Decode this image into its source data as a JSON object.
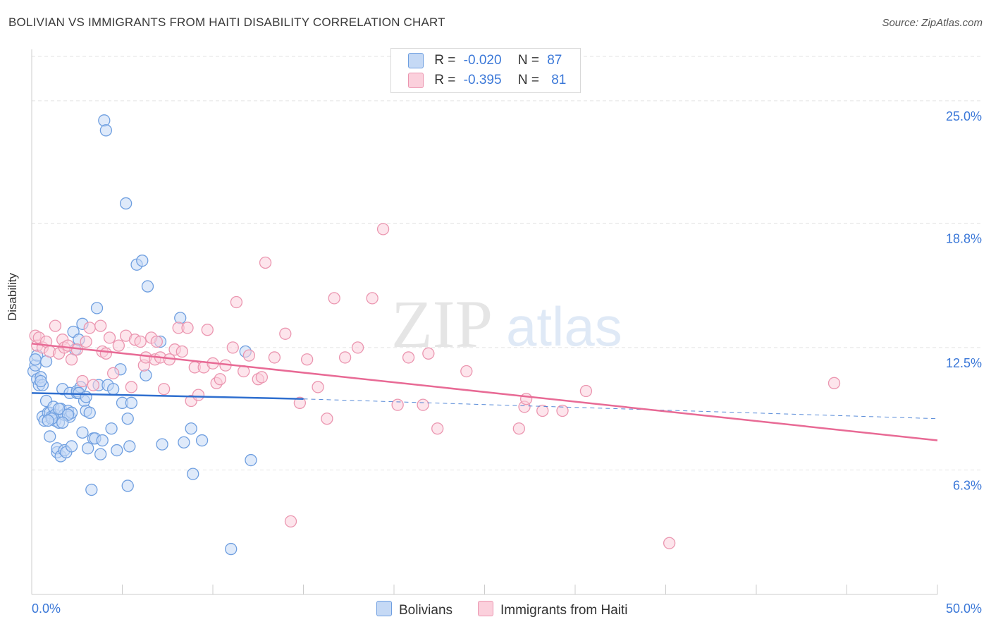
{
  "title": "BOLIVIAN VS IMMIGRANTS FROM HAITI DISABILITY CORRELATION CHART",
  "source": "Source: ZipAtlas.com",
  "watermark": {
    "zip": "ZIP",
    "atlas": "atlas"
  },
  "legend": {
    "rows": [
      {
        "r_label": "R =",
        "r_value": "-0.020",
        "n_label": "N =",
        "n_value": "87"
      },
      {
        "r_label": "R =",
        "r_value": "-0.395",
        "n_label": "N =",
        "n_value": "81"
      }
    ]
  },
  "colors": {
    "blue_fill": "#c5d9f5",
    "blue_stroke": "#6f9fe0",
    "blue_line": "#2f6fcf",
    "pink_fill": "#fbd0dc",
    "pink_stroke": "#eb96b0",
    "pink_line": "#e86a95",
    "tick_label": "#3b78d8",
    "grid": "#e3e3e3"
  },
  "chart_data": {
    "type": "scatter",
    "title": "BOLIVIAN VS IMMIGRANTS FROM HAITI DISABILITY CORRELATION CHART",
    "xlabel": "",
    "ylabel": "Disability",
    "xlim": [
      0,
      50
    ],
    "ylim": [
      0,
      27.6
    ],
    "x_tick_labels": [
      "0.0%",
      "50.0%"
    ],
    "y_ticks": [
      6.3,
      12.5,
      18.8,
      25.0
    ],
    "y_tick_labels": [
      "6.3%",
      "12.5%",
      "18.8%",
      "25.0%"
    ],
    "grid": "horizontal dashed",
    "legend_position": "top-center",
    "series": [
      {
        "name": "Bolivians",
        "color": "#6f9fe0",
        "trend": {
          "x": [
            0,
            15
          ],
          "y": [
            10.2,
            9.9
          ],
          "dashed_to": [
            50,
            8.9
          ]
        },
        "points": [
          [
            0.1,
            11.3
          ],
          [
            0.2,
            11.6
          ],
          [
            0.3,
            12.1
          ],
          [
            0.3,
            10.9
          ],
          [
            0.4,
            10.6
          ],
          [
            0.5,
            11.0
          ],
          [
            0.6,
            10.6
          ],
          [
            0.6,
            9.0
          ],
          [
            0.7,
            8.8
          ],
          [
            0.8,
            11.8
          ],
          [
            0.8,
            9.8
          ],
          [
            0.9,
            9.2
          ],
          [
            1.0,
            9.2
          ],
          [
            1.0,
            8.0
          ],
          [
            1.1,
            9.0
          ],
          [
            1.2,
            9.5
          ],
          [
            1.3,
            8.8
          ],
          [
            1.3,
            9.1
          ],
          [
            1.4,
            7.2
          ],
          [
            1.4,
            7.4
          ],
          [
            1.5,
            8.7
          ],
          [
            1.6,
            7.0
          ],
          [
            1.6,
            9.4
          ],
          [
            1.7,
            10.4
          ],
          [
            1.8,
            7.3
          ],
          [
            1.8,
            9.1
          ],
          [
            1.9,
            7.2
          ],
          [
            2.0,
            9.3
          ],
          [
            2.1,
            9.0
          ],
          [
            2.1,
            10.2
          ],
          [
            2.2,
            7.5
          ],
          [
            2.2,
            9.2
          ],
          [
            2.3,
            13.3
          ],
          [
            2.4,
            12.4
          ],
          [
            2.5,
            10.2
          ],
          [
            2.5,
            10.3
          ],
          [
            2.6,
            12.9
          ],
          [
            2.7,
            10.5
          ],
          [
            2.8,
            13.7
          ],
          [
            2.8,
            8.2
          ],
          [
            2.9,
            9.8
          ],
          [
            3.0,
            9.3
          ],
          [
            3.1,
            7.4
          ],
          [
            3.2,
            9.2
          ],
          [
            3.3,
            5.3
          ],
          [
            3.4,
            7.9
          ],
          [
            3.5,
            7.9
          ],
          [
            3.6,
            14.5
          ],
          [
            3.7,
            10.6
          ],
          [
            3.8,
            7.1
          ],
          [
            3.9,
            7.8
          ],
          [
            4.0,
            24.0
          ],
          [
            4.1,
            23.5
          ],
          [
            4.2,
            10.6
          ],
          [
            4.4,
            8.4
          ],
          [
            4.5,
            10.4
          ],
          [
            4.7,
            7.3
          ],
          [
            4.9,
            11.4
          ],
          [
            5.0,
            9.7
          ],
          [
            5.2,
            19.8
          ],
          [
            5.3,
            8.9
          ],
          [
            5.3,
            5.5
          ],
          [
            5.4,
            7.5
          ],
          [
            5.5,
            9.7
          ],
          [
            5.8,
            16.7
          ],
          [
            6.1,
            16.9
          ],
          [
            6.3,
            11.1
          ],
          [
            6.4,
            15.6
          ],
          [
            7.1,
            12.8
          ],
          [
            7.2,
            7.6
          ],
          [
            8.2,
            14.0
          ],
          [
            8.4,
            7.7
          ],
          [
            8.8,
            8.4
          ],
          [
            8.9,
            6.1
          ],
          [
            9.4,
            7.8
          ],
          [
            11.0,
            2.3
          ],
          [
            11.8,
            12.3
          ],
          [
            12.1,
            6.8
          ],
          [
            0.2,
            11.9
          ],
          [
            0.5,
            10.8
          ],
          [
            1.1,
            8.9
          ],
          [
            1.5,
            9.4
          ],
          [
            2.0,
            9.1
          ],
          [
            2.6,
            10.2
          ],
          [
            3.0,
            10.0
          ],
          [
            0.9,
            8.8
          ],
          [
            1.7,
            8.7
          ]
        ]
      },
      {
        "name": "Immigrants from Haiti",
        "color": "#eb96b0",
        "trend": {
          "x": [
            0,
            50
          ],
          "y": [
            12.7,
            7.8
          ]
        },
        "points": [
          [
            0.2,
            13.1
          ],
          [
            0.3,
            12.6
          ],
          [
            0.4,
            13.0
          ],
          [
            0.6,
            12.5
          ],
          [
            0.8,
            12.8
          ],
          [
            1.0,
            12.3
          ],
          [
            1.3,
            13.6
          ],
          [
            1.5,
            12.2
          ],
          [
            1.7,
            12.9
          ],
          [
            1.8,
            12.5
          ],
          [
            2.0,
            12.6
          ],
          [
            2.2,
            11.9
          ],
          [
            2.5,
            12.4
          ],
          [
            2.8,
            10.8
          ],
          [
            3.0,
            12.8
          ],
          [
            3.2,
            13.5
          ],
          [
            3.4,
            10.6
          ],
          [
            3.8,
            13.6
          ],
          [
            3.9,
            12.3
          ],
          [
            4.1,
            12.2
          ],
          [
            4.3,
            13.0
          ],
          [
            4.5,
            11.2
          ],
          [
            4.8,
            12.6
          ],
          [
            5.2,
            13.1
          ],
          [
            5.5,
            10.5
          ],
          [
            5.7,
            12.9
          ],
          [
            6.0,
            12.8
          ],
          [
            6.2,
            11.6
          ],
          [
            6.3,
            12.0
          ],
          [
            6.6,
            13.0
          ],
          [
            6.8,
            11.9
          ],
          [
            6.9,
            12.8
          ],
          [
            7.1,
            12.0
          ],
          [
            7.3,
            10.4
          ],
          [
            7.6,
            11.9
          ],
          [
            7.9,
            12.4
          ],
          [
            8.1,
            13.5
          ],
          [
            8.3,
            12.3
          ],
          [
            8.6,
            13.5
          ],
          [
            8.8,
            9.8
          ],
          [
            9.0,
            11.5
          ],
          [
            9.2,
            10.1
          ],
          [
            9.5,
            11.5
          ],
          [
            9.7,
            13.4
          ],
          [
            10.0,
            11.7
          ],
          [
            10.2,
            10.7
          ],
          [
            10.4,
            10.9
          ],
          [
            10.7,
            11.6
          ],
          [
            11.1,
            12.5
          ],
          [
            11.3,
            14.8
          ],
          [
            11.7,
            11.3
          ],
          [
            12.0,
            12.1
          ],
          [
            12.5,
            10.9
          ],
          [
            12.7,
            11.0
          ],
          [
            12.9,
            16.8
          ],
          [
            13.4,
            12.0
          ],
          [
            14.0,
            13.2
          ],
          [
            14.3,
            3.7
          ],
          [
            14.8,
            9.7
          ],
          [
            15.2,
            11.9
          ],
          [
            15.8,
            10.5
          ],
          [
            16.3,
            8.9
          ],
          [
            16.7,
            15.0
          ],
          [
            17.3,
            12.0
          ],
          [
            18.0,
            12.5
          ],
          [
            18.8,
            15.0
          ],
          [
            19.4,
            18.5
          ],
          [
            20.2,
            9.6
          ],
          [
            20.8,
            12.0
          ],
          [
            21.6,
            9.6
          ],
          [
            21.9,
            12.2
          ],
          [
            22.4,
            8.4
          ],
          [
            24.0,
            11.3
          ],
          [
            26.9,
            8.4
          ],
          [
            27.2,
            9.5
          ],
          [
            27.3,
            9.9
          ],
          [
            28.2,
            9.3
          ],
          [
            29.3,
            9.3
          ],
          [
            30.6,
            10.3
          ],
          [
            35.2,
            2.6
          ],
          [
            44.3,
            10.7
          ]
        ]
      }
    ]
  },
  "bottom_legend": [
    "Bolivians",
    "Immigrants from Haiti"
  ]
}
